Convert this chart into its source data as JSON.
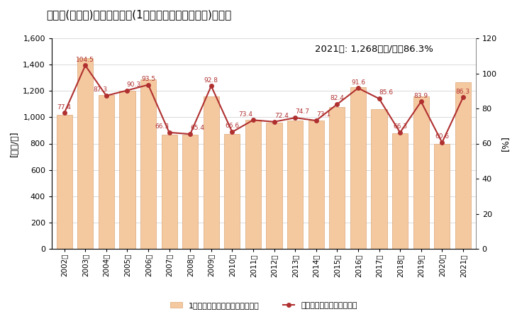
{
  "title": "久山町(福岡県)の労働生産性(1人当たり粗付加価値額)の推移",
  "years": [
    "2002年",
    "2003年",
    "2004年",
    "2005年",
    "2006年",
    "2007年",
    "2008年",
    "2009年",
    "2010年",
    "2011年",
    "2012年",
    "2013年",
    "2014年",
    "2015年",
    "2016年",
    "2017年",
    "2018年",
    "2019年",
    "2020年",
    "2021年"
  ],
  "bar_values": [
    1020,
    1450,
    1170,
    1200,
    1290,
    870,
    870,
    1160,
    875,
    980,
    960,
    975,
    975,
    1080,
    1230,
    1060,
    880,
    1160,
    800,
    1268
  ],
  "line_values": [
    77.4,
    104.5,
    87.3,
    90.3,
    93.5,
    66.3,
    65.4,
    92.8,
    66.6,
    73.4,
    72.4,
    74.7,
    73.1,
    82.4,
    91.6,
    85.6,
    66.3,
    83.9,
    60.6,
    86.3
  ],
  "line_labels": [
    "77.4",
    "104.5",
    "87.3",
    "90.3",
    "93.5",
    "66.3",
    "65.4",
    "92.8",
    "66.6",
    "73.4",
    "72.4",
    "74.7",
    "73.1",
    "82.4",
    "91.6",
    "85.6",
    "66.3",
    "83.9",
    "60.6",
    "86.3"
  ],
  "bar_color": "#F5C9A0",
  "bar_edge_color": "#DBA878",
  "line_color": "#B03030",
  "left_ylabel": "[万円/人]",
  "right_ylabel": "[%]",
  "left_ylim": [
    0,
    1600
  ],
  "left_yticks": [
    0,
    200,
    400,
    600,
    800,
    1000,
    1200,
    1400,
    1600
  ],
  "right_ylim": [
    0,
    120
  ],
  "right_yticks": [
    0,
    20,
    40,
    60,
    80,
    100,
    120
  ],
  "annotation_text": "2021年: 1,268万円/人，86.3%",
  "legend_bar_label": "1人当たり粗付加価値額（左軸）",
  "legend_line_label": "対全国比（右軸）（右軸）",
  "bg_color": "#FFFFFF",
  "title_fontsize": 11,
  "label_fontsize": 9,
  "tick_fontsize": 8,
  "annotation_fontsize": 9.5,
  "legend_fontsize": 8
}
